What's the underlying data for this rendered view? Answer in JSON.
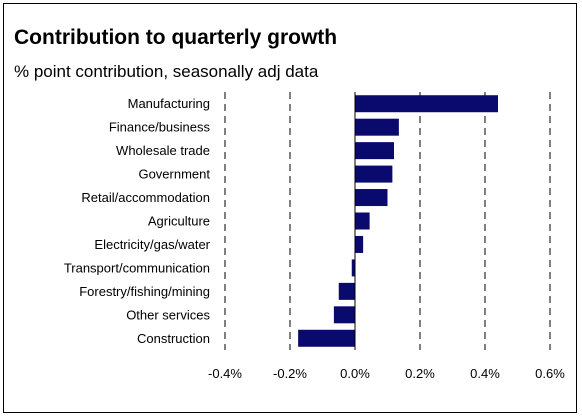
{
  "chart_data": {
    "type": "bar",
    "orientation": "horizontal",
    "title": "Contribution to quarterly growth",
    "subtitle": "% point contribution, seasonally adj data",
    "categories": [
      "Manufacturing",
      "Finance/business",
      "Wholesale trade",
      "Government",
      "Retail/accommodation",
      "Agriculture",
      "Electricity/gas/water",
      "Transport/communication",
      "Forestry/fishing/mining",
      "Other services",
      "Construction"
    ],
    "values": [
      0.44,
      0.135,
      0.12,
      0.115,
      0.1,
      0.045,
      0.025,
      -0.01,
      -0.05,
      -0.065,
      -0.175
    ],
    "xlim": [
      -0.4,
      0.6
    ],
    "xticks": [
      "-0.4%",
      "-0.2%",
      "0.0%",
      "0.2%",
      "0.4%",
      "0.6%"
    ],
    "grid": "vertical dashed",
    "colors": {
      "bar": "#0a0a6e"
    }
  }
}
